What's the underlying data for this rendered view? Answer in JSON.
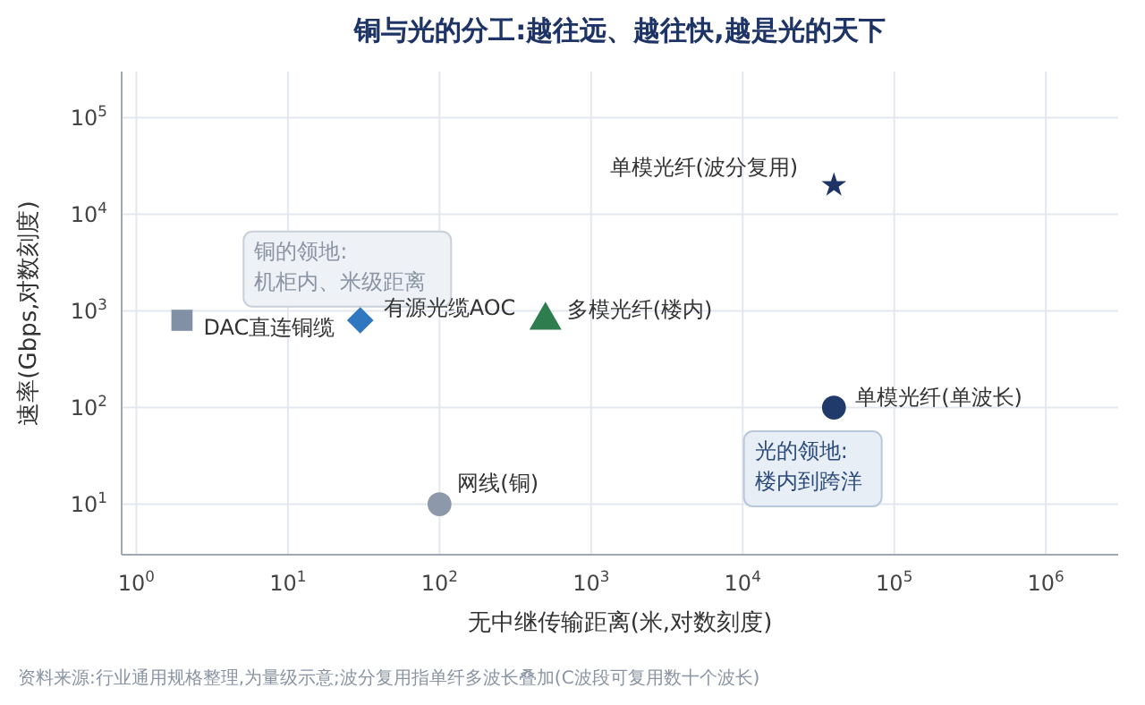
{
  "chart_data": {
    "type": "scatter",
    "title": "铜与光的分工:越往远、越往快,越是光的天下",
    "xlabel": "无中继传输距离(米,对数刻度)",
    "ylabel": "速率(Gbps,对数刻度)",
    "log": "xy",
    "grid": true,
    "xlim": [
      0.8,
      3000000
    ],
    "ylim": [
      3,
      300000
    ],
    "xticks": [
      {
        "value": 1,
        "label": "10$^{0}$"
      },
      {
        "value": 10,
        "label": "10$^{1}$"
      },
      {
        "value": 100,
        "label": "10$^{2}$"
      },
      {
        "value": 1000,
        "label": "10$^{3}$"
      },
      {
        "value": 10000,
        "label": "10$^{4}$"
      },
      {
        "value": 100000,
        "label": "10$^{5}$"
      },
      {
        "value": 1000000,
        "label": "10$^{6}$"
      }
    ],
    "yticks": [
      {
        "value": 10,
        "label": "10$^{1}$"
      },
      {
        "value": 100,
        "label": "10$^{2}$"
      },
      {
        "value": 1000,
        "label": "10$^{3}$"
      },
      {
        "value": 10000,
        "label": "10$^{4}$"
      },
      {
        "value": 100000,
        "label": "10$^{5}$"
      }
    ],
    "series": [
      {
        "name": "DAC直连铜缆",
        "color": "#8290a6",
        "marker": "square",
        "x": [
          2
        ],
        "values": [
          800
        ]
      },
      {
        "name": "有源光缆AOC",
        "color": "#2f78c0",
        "marker": "diamond",
        "x": [
          30
        ],
        "values": [
          800
        ]
      },
      {
        "name": "多模光纤(楼内)",
        "color": "#2e7d4f",
        "marker": "triangle",
        "x": [
          500
        ],
        "values": [
          800
        ]
      },
      {
        "name": "单模光纤(波分复用)",
        "color": "#1f3466",
        "marker": "star",
        "x": [
          40000
        ],
        "values": [
          20000
        ]
      },
      {
        "name": "单模光纤(单波长)",
        "color": "#1f3a6b",
        "marker": "circle",
        "x": [
          40000
        ],
        "values": [
          100
        ]
      },
      {
        "name": "网线(铜)",
        "color": "#8d99ab",
        "marker": "circle",
        "x": [
          100
        ],
        "values": [
          10
        ]
      }
    ],
    "annotations": [
      "铜的领地:\n机柜内、米级距离",
      "光的领地:\n楼内到跨洋",
      "资料来源:行业通用规格整理,为量级示意;波分复用指单纤多波长叠加(C波段可复用数十个波长)"
    ]
  }
}
